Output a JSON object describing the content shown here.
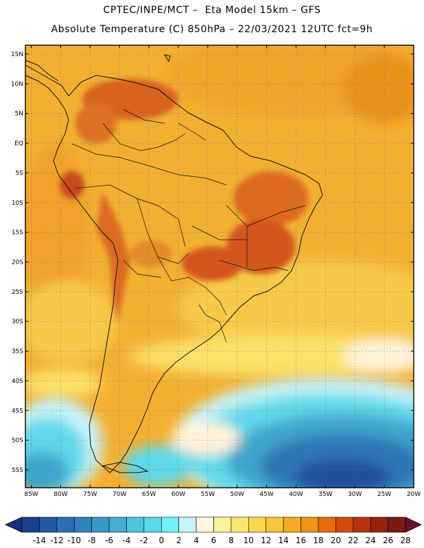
{
  "header": {
    "title_line1": "CPTEC/INPE/MCT –  Eta Model 15km – GFS",
    "title_line2": "Absolute Temperature (C) 850hPa – 22/03/2021 12UTC fct=9h"
  },
  "map": {
    "lat_labels": [
      "15N",
      "10N",
      "5N",
      "EQ",
      "5S",
      "10S",
      "15S",
      "20S",
      "25S",
      "30S",
      "35S",
      "40S",
      "45S",
      "50S",
      "55S"
    ],
    "lon_labels": [
      "85W",
      "80W",
      "75W",
      "70W",
      "65W",
      "60W",
      "55W",
      "50W",
      "45W",
      "40W",
      "35W",
      "30W",
      "25W",
      "20W"
    ],
    "lat_range": [
      -58,
      16.5
    ],
    "lon_range": [
      -86,
      -20
    ],
    "grid": "dotted"
  },
  "colorbar": {
    "levels": [
      "-14",
      "-12",
      "-10",
      "-8",
      "-6",
      "-4",
      "-2",
      "0",
      "2",
      "4",
      "6",
      "8",
      "10",
      "12",
      "14",
      "16",
      "18",
      "20",
      "22",
      "24",
      "26",
      "28"
    ],
    "colors": [
      "#1c3f8c",
      "#2359a3",
      "#2b6eb3",
      "#3282bd",
      "#3a98c7",
      "#44aed2",
      "#4fc4dd",
      "#5cd9e8",
      "#6ff2f5",
      "#c8f4fa",
      "#fff7e0",
      "#fff29a",
      "#fde76a",
      "#fbd94f",
      "#f8c43a",
      "#f5ac22",
      "#ef9414",
      "#e76a0d",
      "#d24b0b",
      "#b7330d",
      "#92230f",
      "#7a1a14"
    ],
    "low_arrow_color": "#1c2f7a",
    "high_arrow_color": "#6e0c2a"
  }
}
